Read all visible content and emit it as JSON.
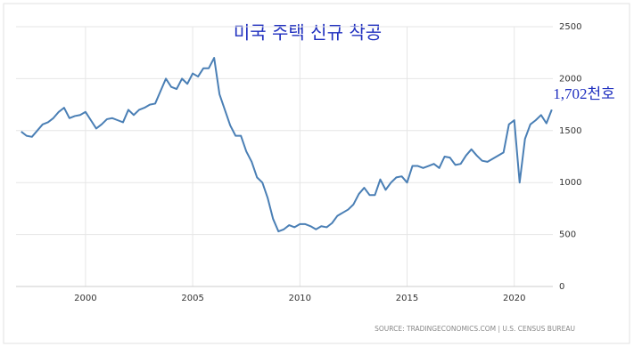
{
  "chart_data": {
    "type": "line",
    "title": "미국 주택 신규 착공",
    "annotation": "1,702천호",
    "source": "SOURCE: TRADINGECONOMICS.COM | U.S. CENSUS BUREAU",
    "x": [
      1997,
      1997.25,
      1997.5,
      1997.75,
      1998,
      1998.25,
      1998.5,
      1998.75,
      1999,
      1999.25,
      1999.5,
      1999.75,
      2000,
      2000.25,
      2000.5,
      2000.75,
      2001,
      2001.25,
      2001.5,
      2001.75,
      2002,
      2002.25,
      2002.5,
      2002.75,
      2003,
      2003.25,
      2003.5,
      2003.75,
      2004,
      2004.25,
      2004.5,
      2004.75,
      2005,
      2005.25,
      2005.5,
      2005.75,
      2006,
      2006.25,
      2006.5,
      2006.75,
      2007,
      2007.25,
      2007.5,
      2007.75,
      2008,
      2008.25,
      2008.5,
      2008.75,
      2009,
      2009.25,
      2009.5,
      2009.75,
      2010,
      2010.25,
      2010.5,
      2010.75,
      2011,
      2011.25,
      2011.5,
      2011.75,
      2012,
      2012.25,
      2012.5,
      2012.75,
      2013,
      2013.25,
      2013.5,
      2013.75,
      2014,
      2014.25,
      2014.5,
      2014.75,
      2015,
      2015.25,
      2015.5,
      2015.75,
      2016,
      2016.25,
      2016.5,
      2016.75,
      2017,
      2017.25,
      2017.5,
      2017.75,
      2018,
      2018.25,
      2018.5,
      2018.75,
      2019,
      2019.25,
      2019.5,
      2019.75,
      2020,
      2020.25,
      2020.5,
      2020.75,
      2021,
      2021.25,
      2021.5,
      2021.75
    ],
    "series": [
      {
        "color": "#4a7fb5",
        "values": [
          1490,
          1450,
          1440,
          1500,
          1560,
          1580,
          1620,
          1680,
          1720,
          1620,
          1640,
          1650,
          1680,
          1600,
          1520,
          1560,
          1610,
          1620,
          1600,
          1580,
          1700,
          1650,
          1700,
          1720,
          1750,
          1760,
          1880,
          2000,
          1920,
          1900,
          2000,
          1950,
          2050,
          2020,
          2100,
          2100,
          2200,
          1850,
          1700,
          1550,
          1450,
          1450,
          1300,
          1200,
          1050,
          1000,
          850,
          650,
          530,
          550,
          590,
          570,
          600,
          600,
          580,
          550,
          580,
          570,
          610,
          680,
          710,
          740,
          790,
          890,
          950,
          880,
          880,
          1030,
          930,
          1000,
          1050,
          1060,
          1000,
          1160,
          1160,
          1140,
          1160,
          1180,
          1140,
          1250,
          1240,
          1170,
          1180,
          1260,
          1320,
          1260,
          1210,
          1200,
          1230,
          1260,
          1290,
          1560,
          1600,
          1000,
          1420,
          1560,
          1600,
          1650,
          1570,
          1702
        ]
      }
    ],
    "xlim": [
      1996.76,
      2021.8
    ],
    "xticks": [
      2000,
      2005,
      2010,
      2015,
      2020
    ],
    "ylim": [
      0,
      2500
    ],
    "yticks": [
      0,
      500,
      1000,
      1500,
      2000,
      2500
    ],
    "grid": true
  }
}
